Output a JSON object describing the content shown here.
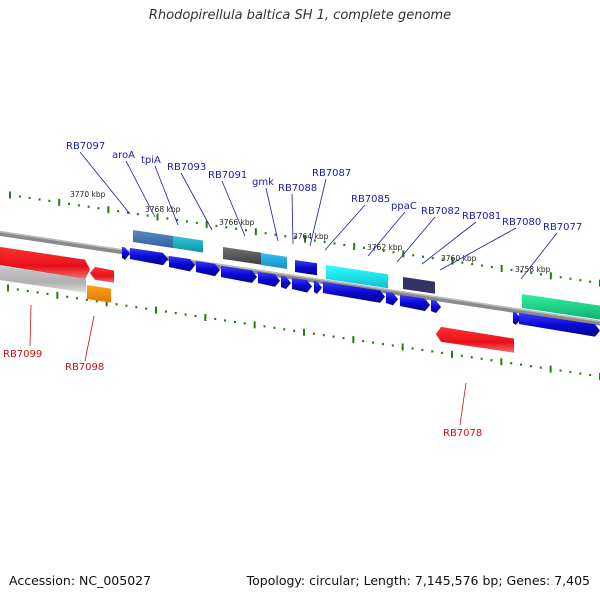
{
  "title": "Rhodopirellula baltica SH 1, complete genome",
  "footer": {
    "accession": "Accession: NC_005027",
    "summary": "Topology: circular; Length: 7,145,576 bp; Genes: 7,405"
  },
  "colors": {
    "forward_gene": "#0a0ad6",
    "reverse_gene": "#e8101a",
    "forward_label": "#1a1aa8",
    "reverse_label": "#cc1010",
    "tick": "#2a7a10",
    "backbone": "#8a8a8a"
  },
  "ticks": [
    "3770 kbp",
    "3768 kbp",
    "3766 kbp",
    "3764 kbp",
    "3762 kbp",
    "3760 kbp",
    "3758 kbp"
  ],
  "forward_genes": [
    "RB7097",
    "aroA",
    "tpiA",
    "RB7093",
    "RB7091",
    "gmk",
    "RB7088",
    "RB7087",
    "RB7085",
    "ppaC",
    "RB7082",
    "RB7081",
    "RB7080",
    "RB7077"
  ],
  "reverse_genes": [
    "RB7099",
    "RB7098",
    "RB7078"
  ]
}
